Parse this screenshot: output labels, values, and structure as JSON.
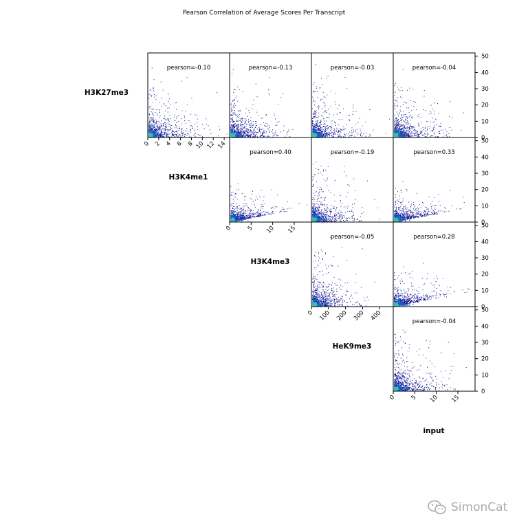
{
  "title": "Pearson Correlation of Average Scores Per Transcript",
  "watermark": {
    "text": "SimonCat",
    "icon": "wechat-icon"
  },
  "colors": {
    "axis": "#000000",
    "density_low": "#0a0a8c",
    "density_mid": "#1e64c8",
    "density_high": "#35c0b0"
  },
  "chart_data": {
    "type": "scatter",
    "layout": "upper-triangle pair matrix",
    "variables": [
      {
        "name": "H3K27me3",
        "range": [
          0,
          15
        ],
        "ticks": [
          0,
          2,
          4,
          6,
          8,
          10,
          12,
          14
        ]
      },
      {
        "name": "H3K4me1",
        "range": [
          0,
          19
        ],
        "ticks": [
          0,
          5,
          10,
          15
        ]
      },
      {
        "name": "H3K4me3",
        "range": [
          0,
          480
        ],
        "ticks": [
          0,
          100,
          200,
          300,
          400
        ]
      },
      {
        "name": "HeK9me3",
        "range": [
          0,
          52
        ],
        "ticks": [
          0,
          10,
          20,
          30,
          40,
          50
        ]
      },
      {
        "name": "input",
        "range": [
          0,
          19
        ],
        "ticks": [
          0,
          5,
          10,
          15
        ]
      }
    ],
    "row_variables": [
      "H3K27me3",
      "H3K4me1",
      "H3K4me3",
      "HeK9me3"
    ],
    "col_variables": [
      "H3K27me3",
      "H3K4me1",
      "H3K4me3",
      "HeK9me3"
    ],
    "y_axis": {
      "side": "right",
      "range": [
        0,
        52
      ],
      "ticks": [
        0,
        10,
        20,
        30,
        40,
        50
      ]
    },
    "cells": [
      {
        "row": 0,
        "col": 0,
        "label": "pearson=-0.10",
        "value": -0.1
      },
      {
        "row": 0,
        "col": 1,
        "label": "pearson=-0.13",
        "value": -0.13
      },
      {
        "row": 0,
        "col": 2,
        "label": "pearson=-0.03",
        "value": -0.03
      },
      {
        "row": 0,
        "col": 3,
        "label": "pearson=-0.04",
        "value": -0.04
      },
      {
        "row": 1,
        "col": 1,
        "label": "pearson=0.40",
        "value": 0.4
      },
      {
        "row": 1,
        "col": 2,
        "label": "pearson=-0.19",
        "value": -0.19
      },
      {
        "row": 1,
        "col": 3,
        "label": "pearson=0.33",
        "value": 0.33
      },
      {
        "row": 2,
        "col": 2,
        "label": "pearson=-0.05",
        "value": -0.05
      },
      {
        "row": 2,
        "col": 3,
        "label": "pearson=0.28",
        "value": 0.28
      },
      {
        "row": 3,
        "col": 3,
        "label": "pearson=-0.04",
        "value": -0.04
      }
    ],
    "diagonal_labels": [
      "H3K27me3",
      "H3K4me1",
      "H3K4me3",
      "HeK9me3",
      "input"
    ],
    "grid": false,
    "legend": "none"
  }
}
